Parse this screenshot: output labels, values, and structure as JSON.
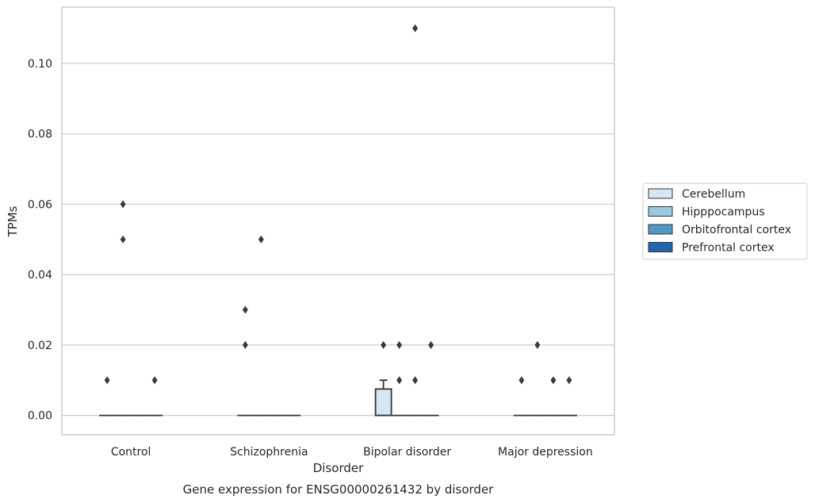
{
  "caption": "Gene expression for ENSG00000261432 by disorder",
  "colors": {
    "Cerebellum": "#d6e6f4",
    "Hipppocampus": "#9ac8e0",
    "Orbitofrontal cortex": "#5297c6",
    "Prefrontal cortex": "#2166ac",
    "grid": "#cccccc",
    "box_edge": "#333333",
    "outlier": "#3a3a3a"
  },
  "chart_data": {
    "type": "box",
    "xlabel": "Disorder",
    "ylabel": "TPMs",
    "categories": [
      "Control",
      "Schizophrenia",
      "Bipolar disorder",
      "Major depression"
    ],
    "ylim": [
      -0.0055,
      0.116
    ],
    "yticks": [
      0.0,
      0.02,
      0.04,
      0.06,
      0.08,
      0.1
    ],
    "ytick_labels": [
      "0.00",
      "0.02",
      "0.04",
      "0.06",
      "0.08",
      "0.10"
    ],
    "grid": "horizontal",
    "legend": {
      "placement": "right-outside",
      "entries": [
        "Cerebellum",
        "Hipppocampus",
        "Orbitofrontal cortex",
        "Prefrontal cortex"
      ]
    },
    "series": [
      {
        "name": "Cerebellum",
        "boxes": [
          {
            "q1": 0,
            "median": 0,
            "q3": 0,
            "whisker_low": 0,
            "whisker_high": 0,
            "outliers": [
              0.01
            ]
          },
          {
            "q1": 0,
            "median": 0,
            "q3": 0,
            "whisker_low": 0,
            "whisker_high": 0,
            "outliers": [
              0.02,
              0.03
            ]
          },
          {
            "q1": 0,
            "median": 0,
            "q3": 0.0075,
            "whisker_low": 0,
            "whisker_high": 0.01,
            "outliers": [
              0.02
            ]
          },
          {
            "q1": 0,
            "median": 0,
            "q3": 0,
            "whisker_low": 0,
            "whisker_high": 0,
            "outliers": [
              0.01
            ]
          }
        ]
      },
      {
        "name": "Hipppocampus",
        "boxes": [
          {
            "q1": 0,
            "median": 0,
            "q3": 0,
            "whisker_low": 0,
            "whisker_high": 0,
            "outliers": [
              0.05,
              0.06
            ]
          },
          {
            "q1": 0,
            "median": 0,
            "q3": 0,
            "whisker_low": 0,
            "whisker_high": 0,
            "outliers": [
              0.05
            ]
          },
          {
            "q1": 0,
            "median": 0,
            "q3": 0,
            "whisker_low": 0,
            "whisker_high": 0,
            "outliers": [
              0.01,
              0.02
            ]
          },
          {
            "q1": 0,
            "median": 0,
            "q3": 0,
            "whisker_low": 0,
            "whisker_high": 0,
            "outliers": [
              0.02
            ]
          }
        ]
      },
      {
        "name": "Orbitofrontal cortex",
        "boxes": [
          {
            "q1": 0,
            "median": 0,
            "q3": 0,
            "whisker_low": 0,
            "whisker_high": 0,
            "outliers": []
          },
          {
            "q1": 0,
            "median": 0,
            "q3": 0,
            "whisker_low": 0,
            "whisker_high": 0,
            "outliers": []
          },
          {
            "q1": 0,
            "median": 0,
            "q3": 0,
            "whisker_low": 0,
            "whisker_high": 0,
            "outliers": [
              0.01,
              0.11
            ]
          },
          {
            "q1": 0,
            "median": 0,
            "q3": 0,
            "whisker_low": 0,
            "whisker_high": 0,
            "outliers": [
              0.01
            ]
          }
        ]
      },
      {
        "name": "Prefrontal cortex",
        "boxes": [
          {
            "q1": 0,
            "median": 0,
            "q3": 0,
            "whisker_low": 0,
            "whisker_high": 0,
            "outliers": [
              0.01
            ]
          },
          {
            "q1": 0,
            "median": 0,
            "q3": 0,
            "whisker_low": 0,
            "whisker_high": 0,
            "outliers": []
          },
          {
            "q1": 0,
            "median": 0,
            "q3": 0,
            "whisker_low": 0,
            "whisker_high": 0,
            "outliers": [
              0.02
            ]
          },
          {
            "q1": 0,
            "median": 0,
            "q3": 0,
            "whisker_low": 0,
            "whisker_high": 0,
            "outliers": [
              0.01
            ]
          }
        ]
      }
    ]
  }
}
